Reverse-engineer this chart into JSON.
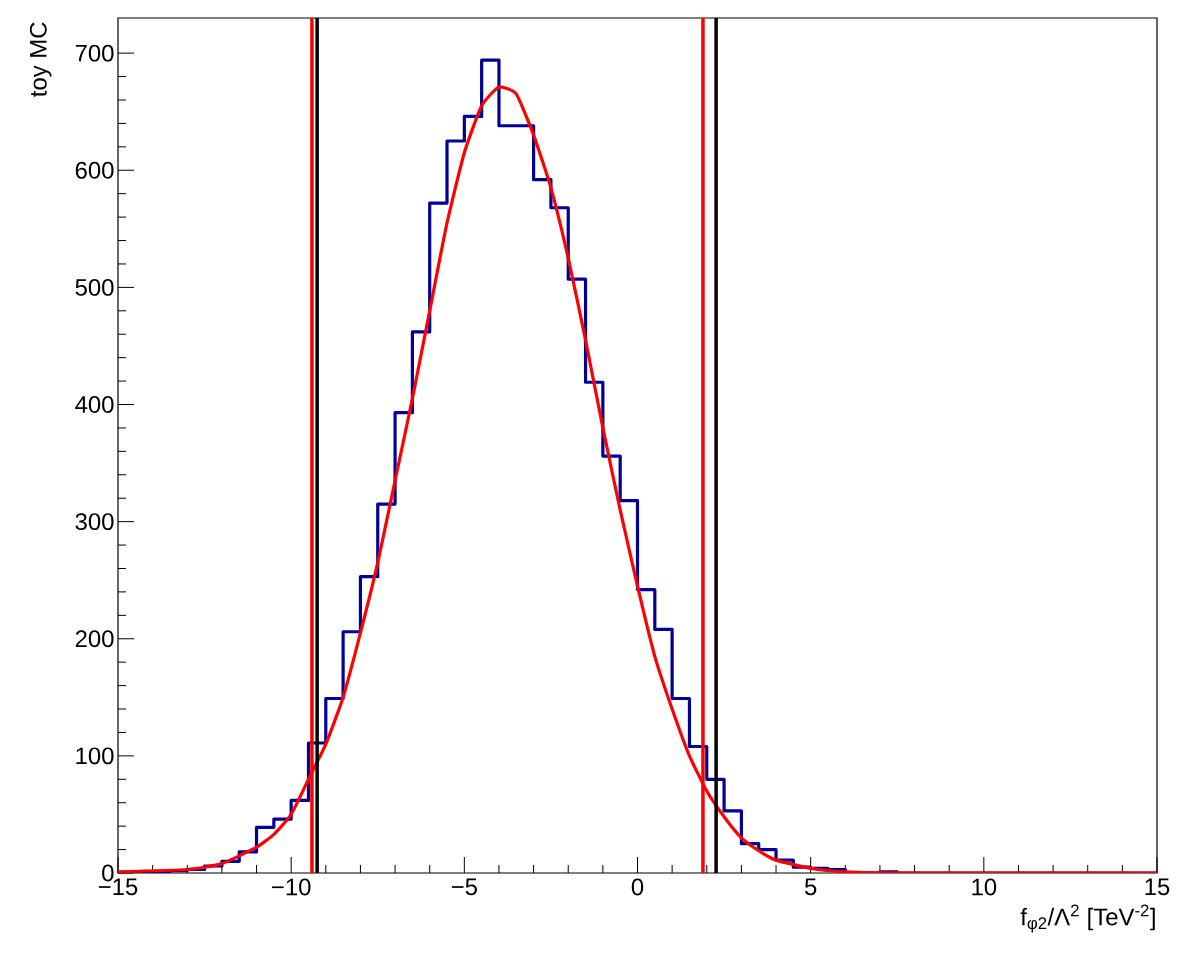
{
  "chart_data": {
    "type": "histogram",
    "xlabel": "f$_{φ2}$/Λ$^{2}$ [TeV$^{-2}$]",
    "ylabel": "toy MC",
    "series": [
      {
        "color": "#000099",
        "bins": [
          -15,
          -14.5,
          -14,
          -13.5,
          -13,
          -12.5,
          -12,
          -11.5,
          -11,
          -10.5,
          -10,
          -9.5,
          -9,
          -8.5,
          -8,
          -7.5,
          -7,
          -6.5,
          -6,
          -5.5,
          -5,
          -4.5,
          -4,
          -3.5,
          -3,
          -2.5,
          -2,
          -1.5,
          -1,
          -0.5,
          0,
          0.5,
          1,
          1.5,
          2,
          2.5,
          3,
          3.5,
          4,
          4.5,
          5,
          5.5,
          6,
          6.5,
          7,
          7.5,
          8,
          8.5,
          9,
          9.5,
          10,
          10.5,
          11,
          11.5,
          12,
          12.5,
          13,
          13.5,
          14,
          14.5,
          15
        ],
        "values": [
          0,
          1,
          1,
          2,
          3,
          6,
          10,
          18,
          39,
          46,
          62,
          111,
          149,
          206,
          253,
          315,
          393,
          462,
          572,
          625,
          646,
          694,
          638,
          638,
          592,
          568,
          507,
          419,
          356,
          318,
          242,
          208,
          149,
          108,
          80,
          53,
          25,
          20,
          11,
          5,
          4,
          3,
          0,
          0,
          1,
          0,
          0,
          0,
          0,
          0,
          0,
          0,
          0,
          0,
          0,
          0,
          0,
          0,
          0,
          0
        ]
      },
      {
        "type": "line",
        "color": "#ff0000",
        "x": [
          -15,
          -13,
          -12,
          -11,
          -10.5,
          -10,
          -9.5,
          -9,
          -8.5,
          -8,
          -7.5,
          -7,
          -6.5,
          -6,
          -5.5,
          -5,
          -4.5,
          -4,
          -3.5,
          -3,
          -2.5,
          -2,
          -1.5,
          -1,
          -0.5,
          0,
          0.5,
          1,
          1.5,
          2,
          2.5,
          3,
          3.5,
          4,
          5,
          6,
          8,
          15
        ],
        "values": [
          1,
          3,
          8,
          22,
          33,
          50,
          80,
          110,
          150,
          205,
          265,
          335,
          405,
          480,
          555,
          615,
          655,
          671,
          665,
          630,
          585,
          525,
          455,
          380,
          310,
          245,
          185,
          140,
          100,
          70,
          48,
          30,
          19,
          11,
          4,
          1,
          0,
          0
        ]
      }
    ],
    "ref_lines": [
      {
        "axis": "x",
        "value": -9.4,
        "color": "#ff0000"
      },
      {
        "axis": "x",
        "value": -9.25,
        "color": "#000000"
      },
      {
        "axis": "x",
        "value": 1.89,
        "color": "#ff0000"
      },
      {
        "axis": "x",
        "value": 2.27,
        "color": "#000000"
      }
    ],
    "xlim": [
      -15,
      15
    ],
    "ylim": [
      0,
      730
    ],
    "xticks": [
      {
        "value": -15,
        "label": "−15"
      },
      {
        "value": -10,
        "label": "−10"
      },
      {
        "value": -5,
        "label": "−5"
      },
      0,
      5,
      10,
      15
    ],
    "yticks": [
      0,
      100,
      200,
      300,
      400,
      500,
      600,
      700
    ],
    "grid": false
  }
}
